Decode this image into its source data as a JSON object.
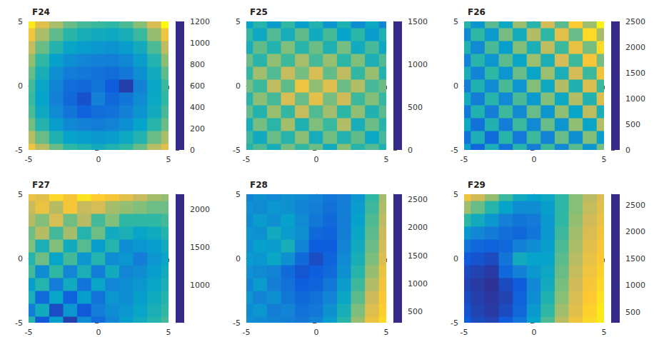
{
  "chart_data": [
    {
      "type": "heatmap",
      "title": "F24",
      "x": [
        -5,
        -4,
        -3,
        -2,
        -1,
        0,
        1,
        2,
        3,
        4,
        5
      ],
      "y": [
        -5,
        -4,
        -3,
        -2,
        -1,
        0,
        1,
        2,
        3,
        4,
        5
      ],
      "z": [
        [
          1000,
          850,
          700,
          600,
          550,
          500,
          550,
          600,
          700,
          850,
          950
        ],
        [
          850,
          700,
          550,
          450,
          420,
          400,
          420,
          480,
          560,
          700,
          820
        ],
        [
          720,
          560,
          420,
          330,
          300,
          280,
          310,
          360,
          450,
          580,
          700
        ],
        [
          650,
          480,
          340,
          250,
          180,
          220,
          240,
          300,
          380,
          500,
          640
        ],
        [
          620,
          450,
          300,
          200,
          120,
          300,
          200,
          250,
          340,
          470,
          600
        ],
        [
          640,
          460,
          310,
          220,
          200,
          250,
          150,
          60,
          300,
          460,
          620
        ],
        [
          700,
          520,
          360,
          280,
          260,
          240,
          220,
          260,
          360,
          500,
          680
        ],
        [
          780,
          600,
          440,
          360,
          320,
          300,
          290,
          330,
          420,
          560,
          760
        ],
        [
          880,
          700,
          560,
          460,
          420,
          400,
          380,
          420,
          500,
          650,
          860
        ],
        [
          1000,
          820,
          680,
          580,
          520,
          500,
          480,
          520,
          620,
          780,
          1000
        ],
        [
          1150,
          950,
          820,
          700,
          640,
          620,
          600,
          650,
          750,
          920,
          1200
        ]
      ],
      "xlim": [
        -5,
        5
      ],
      "ylim": [
        -5,
        5
      ],
      "xticks": [
        -5,
        0,
        5
      ],
      "yticks": [
        -5,
        0,
        5
      ],
      "zlim": [
        0,
        1200
      ],
      "zticks": [
        0,
        200,
        400,
        600,
        800,
        1000,
        1200
      ]
    },
    {
      "type": "heatmap",
      "title": "F25",
      "x": [
        -5,
        -4,
        -3,
        -2,
        -1,
        0,
        1,
        2,
        3,
        4,
        5
      ],
      "y": [
        -5,
        -4,
        -3,
        -2,
        -1,
        0,
        1,
        2,
        3,
        4,
        5
      ],
      "z": [
        [
          700,
          820,
          650,
          900,
          760,
          880,
          620,
          940,
          710,
          830,
          680
        ],
        [
          780,
          610,
          870,
          720,
          950,
          640,
          890,
          700,
          860,
          590,
          800
        ],
        [
          640,
          900,
          730,
          1010,
          680,
          920,
          770,
          1050,
          650,
          880,
          720
        ],
        [
          860,
          700,
          980,
          760,
          1100,
          820,
          1000,
          740,
          960,
          690,
          840
        ],
        [
          720,
          950,
          800,
          1150,
          870,
          1200,
          900,
          1120,
          780,
          930,
          760
        ],
        [
          900,
          780,
          1080,
          850,
          1250,
          960,
          1180,
          880,
          1050,
          800,
          880
        ],
        [
          760,
          1000,
          820,
          1100,
          900,
          1150,
          860,
          1080,
          760,
          980,
          700
        ],
        [
          880,
          720,
          960,
          780,
          1020,
          800,
          980,
          740,
          920,
          660,
          820
        ],
        [
          650,
          860,
          700,
          920,
          720,
          880,
          680,
          900,
          620,
          800,
          600
        ],
        [
          760,
          600,
          820,
          640,
          860,
          620,
          800,
          560,
          740,
          520,
          680
        ],
        [
          560,
          720,
          520,
          760,
          540,
          700,
          480,
          680,
          440,
          600,
          400
        ]
      ],
      "xlim": [
        -5,
        5
      ],
      "ylim": [
        -5,
        5
      ],
      "xticks": [
        -5,
        0,
        5
      ],
      "yticks": [
        -5,
        0,
        5
      ],
      "zlim": [
        0,
        1500
      ],
      "zticks": [
        0,
        500,
        1000,
        1500
      ]
    },
    {
      "type": "heatmap",
      "title": "F26",
      "x": [
        -5,
        -4,
        -3,
        -2,
        -1,
        0,
        1,
        2,
        3,
        4,
        5
      ],
      "y": [
        -5,
        -4,
        -3,
        -2,
        -1,
        0,
        1,
        2,
        3,
        4,
        5
      ],
      "z": [
        [
          900,
          400,
          1100,
          500,
          1200,
          600,
          1300,
          700,
          1400,
          800,
          1500
        ],
        [
          500,
          1100,
          450,
          1200,
          550,
          1300,
          650,
          1450,
          750,
          1550,
          900
        ],
        [
          1000,
          500,
          1150,
          600,
          1300,
          700,
          1450,
          800,
          1600,
          950,
          1750
        ],
        [
          550,
          1150,
          600,
          1300,
          700,
          1450,
          800,
          1600,
          950,
          1800,
          1100
        ],
        [
          1050,
          600,
          1200,
          700,
          1350,
          850,
          1550,
          1000,
          1750,
          1150,
          1950
        ],
        [
          600,
          1150,
          700,
          1350,
          800,
          1550,
          1000,
          1750,
          1150,
          1950,
          1300
        ],
        [
          1100,
          650,
          1250,
          800,
          1450,
          950,
          1650,
          1100,
          1900,
          1300,
          2100
        ],
        [
          650,
          1200,
          800,
          1400,
          950,
          1650,
          1100,
          1900,
          1300,
          2150,
          1500
        ],
        [
          1150,
          700,
          1350,
          900,
          1550,
          1100,
          1800,
          1300,
          2050,
          1500,
          2300
        ],
        [
          700,
          1250,
          850,
          1500,
          1050,
          1750,
          1250,
          2000,
          1450,
          2300,
          1700
        ],
        [
          1200,
          800,
          1400,
          1000,
          1650,
          1200,
          1900,
          1400,
          2200,
          1650,
          2450
        ]
      ],
      "xlim": [
        -5,
        5
      ],
      "ylim": [
        -5,
        5
      ],
      "xticks": [
        -5,
        0,
        5
      ],
      "yticks": [
        -5,
        0,
        5
      ],
      "zlim": [
        0,
        2500
      ],
      "zticks": [
        0,
        500,
        1000,
        1500,
        2000,
        2500
      ]
    },
    {
      "type": "heatmap",
      "title": "F27",
      "x": [
        -5,
        -4,
        -3,
        -2,
        -1,
        0,
        1,
        2,
        3,
        4,
        5
      ],
      "y": [
        -5,
        -4,
        -3,
        -2,
        -1,
        0,
        1,
        2,
        3,
        4,
        5
      ],
      "z": [
        [
          1300,
          700,
          1100,
          600,
          1000,
          800,
          950,
          1100,
          1200,
          1300,
          1400
        ],
        [
          900,
          1200,
          650,
          1050,
          700,
          900,
          1000,
          1050,
          1150,
          1250,
          1350
        ],
        [
          1250,
          800,
          1150,
          750,
          1100,
          850,
          1050,
          1000,
          1100,
          1200,
          1300
        ],
        [
          1100,
          1300,
          900,
          1200,
          850,
          1150,
          950,
          1000,
          1050,
          1150,
          1250
        ],
        [
          1400,
          1000,
          1350,
          950,
          1250,
          900,
          1200,
          950,
          1000,
          1100,
          1200
        ],
        [
          1300,
          1500,
          1150,
          1400,
          1050,
          1300,
          1000,
          1050,
          900,
          1050,
          1150
        ],
        [
          1550,
          1250,
          1550,
          1200,
          1450,
          1100,
          1300,
          1000,
          1050,
          1100,
          1200
        ],
        [
          1500,
          1700,
          1400,
          1650,
          1300,
          1500,
          1200,
          1250,
          1150,
          1200,
          1300
        ],
        [
          1700,
          1550,
          1800,
          1500,
          1700,
          1400,
          1550,
          1350,
          1350,
          1350,
          1400
        ],
        [
          1750,
          1900,
          1700,
          1950,
          1750,
          1800,
          1650,
          1600,
          1550,
          1500,
          1500
        ],
        [
          1900,
          1850,
          2050,
          1950,
          2100,
          2000,
          1950,
          1850,
          1750,
          1650,
          1600
        ]
      ],
      "xlim": [
        -5,
        5
      ],
      "ylim": [
        -5,
        5
      ],
      "xticks": [
        -5,
        0,
        5
      ],
      "yticks": [
        -5,
        0,
        5
      ],
      "zlim": [
        500,
        2200
      ],
      "zticks": [
        1000,
        1500,
        2000
      ]
    },
    {
      "type": "heatmap",
      "title": "F28",
      "x": [
        -5,
        -4,
        -3,
        -2,
        -1,
        0,
        1,
        2,
        3,
        4,
        5
      ],
      "y": [
        -5,
        -4,
        -3,
        -2,
        -1,
        0,
        1,
        2,
        3,
        4,
        5
      ],
      "z": [
        [
          1000,
          950,
          900,
          850,
          800,
          900,
          1100,
          1400,
          1800,
          2200,
          2400
        ],
        [
          950,
          1050,
          850,
          900,
          750,
          800,
          1000,
          1300,
          1700,
          2100,
          2350
        ],
        [
          1050,
          900,
          1000,
          800,
          700,
          750,
          900,
          1200,
          1600,
          2000,
          2300
        ],
        [
          900,
          1100,
          850,
          750,
          600,
          650,
          800,
          1100,
          1500,
          1900,
          2250
        ],
        [
          1000,
          950,
          900,
          700,
          550,
          600,
          700,
          1000,
          1400,
          1800,
          2200
        ],
        [
          1100,
          1050,
          1200,
          1000,
          700,
          500,
          650,
          950,
          1300,
          1700,
          2100
        ],
        [
          1000,
          1150,
          1100,
          1300,
          900,
          600,
          600,
          900,
          1250,
          1650,
          2050
        ],
        [
          1050,
          1000,
          1250,
          1100,
          1000,
          700,
          650,
          850,
          1200,
          1600,
          2000
        ],
        [
          950,
          1100,
          1000,
          1150,
          950,
          800,
          700,
          850,
          1150,
          1550,
          1950
        ],
        [
          1000,
          950,
          1050,
          1000,
          900,
          850,
          750,
          850,
          1100,
          1500,
          1900
        ],
        [
          900,
          1000,
          950,
          1000,
          950,
          900,
          800,
          850,
          1050,
          1450,
          1850
        ]
      ],
      "xlim": [
        -5,
        5
      ],
      "ylim": [
        -5,
        5
      ],
      "xticks": [
        -5,
        0,
        5
      ],
      "yticks": [
        -5,
        0,
        5
      ],
      "zlim": [
        300,
        2600
      ],
      "zticks": [
        500,
        1000,
        1500,
        2000,
        2500
      ]
    },
    {
      "type": "heatmap",
      "title": "F29",
      "x": [
        -5,
        -4,
        -3,
        -2,
        -1,
        0,
        1,
        2,
        3,
        4,
        5
      ],
      "y": [
        -5,
        -4,
        -3,
        -2,
        -1,
        0,
        1,
        2,
        3,
        4,
        5
      ],
      "z": [
        [
          600,
          500,
          450,
          600,
          800,
          1200,
          1600,
          2000,
          2300,
          2500,
          2600
        ],
        [
          550,
          450,
          400,
          500,
          700,
          1100,
          1500,
          1900,
          2200,
          2450,
          2600
        ],
        [
          500,
          420,
          380,
          450,
          650,
          1000,
          1400,
          1800,
          2150,
          2400,
          2550
        ],
        [
          450,
          400,
          350,
          500,
          600,
          950,
          1300,
          1750,
          2100,
          2350,
          2500
        ],
        [
          500,
          450,
          400,
          700,
          900,
          1100,
          1250,
          1700,
          2050,
          2300,
          2450
        ],
        [
          600,
          550,
          500,
          800,
          1300,
          1200,
          1200,
          1650,
          2000,
          2250,
          2400
        ],
        [
          800,
          700,
          650,
          700,
          900,
          1000,
          1150,
          1600,
          1950,
          2200,
          2350
        ],
        [
          1100,
          950,
          850,
          750,
          700,
          800,
          1100,
          1550,
          1900,
          2150,
          2300
        ],
        [
          1500,
          1300,
          1100,
          900,
          800,
          850,
          1100,
          1500,
          1850,
          2100,
          2250
        ],
        [
          1900,
          1700,
          1450,
          1200,
          1000,
          1000,
          1150,
          1500,
          1800,
          2050,
          2200
        ],
        [
          2300,
          2100,
          1850,
          1550,
          1300,
          1200,
          1250,
          1500,
          1800,
          2000,
          2150
        ]
      ],
      "xlim": [
        -5,
        5
      ],
      "ylim": [
        -5,
        5
      ],
      "xticks": [
        -5,
        0,
        5
      ],
      "yticks": [
        -5,
        0,
        5
      ],
      "zlim": [
        300,
        2700
      ],
      "zticks": [
        500,
        1000,
        1500,
        2000,
        2500
      ]
    }
  ]
}
